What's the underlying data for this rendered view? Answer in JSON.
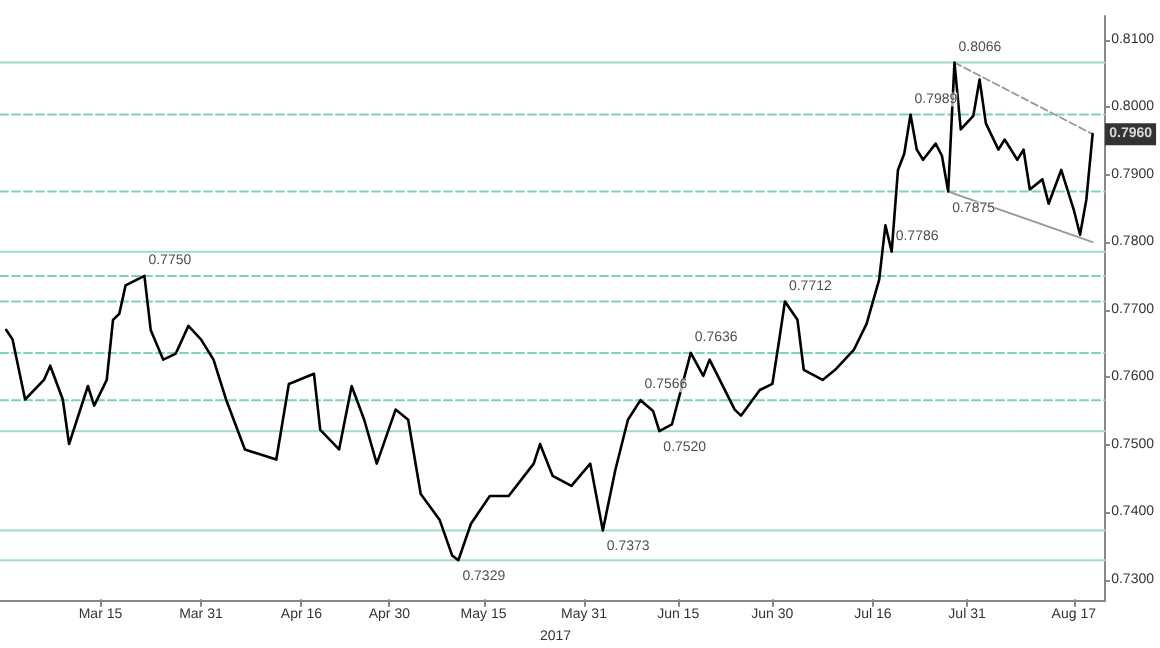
{
  "chart_data": {
    "type": "line",
    "x": [
      "2017-02-28",
      "2017-03-01",
      "2017-03-03",
      "2017-03-06",
      "2017-03-07",
      "2017-03-09",
      "2017-03-10",
      "2017-03-13",
      "2017-03-14",
      "2017-03-16",
      "2017-03-17",
      "2017-03-18",
      "2017-03-19",
      "2017-03-22",
      "2017-03-23",
      "2017-03-25",
      "2017-03-27",
      "2017-03-29",
      "2017-03-31",
      "2017-04-02",
      "2017-04-04",
      "2017-04-07",
      "2017-04-12",
      "2017-04-14",
      "2017-04-18",
      "2017-04-19",
      "2017-04-22",
      "2017-04-24",
      "2017-04-26",
      "2017-04-28",
      "2017-05-01",
      "2017-05-03",
      "2017-05-05",
      "2017-05-08",
      "2017-05-10",
      "2017-05-11",
      "2017-05-13",
      "2017-05-16",
      "2017-05-19",
      "2017-05-23",
      "2017-05-24",
      "2017-05-26",
      "2017-05-29",
      "2017-06-01",
      "2017-06-03",
      "2017-06-05",
      "2017-06-07",
      "2017-06-09",
      "2017-06-11",
      "2017-06-12",
      "2017-06-14",
      "2017-06-17",
      "2017-06-19",
      "2017-06-20",
      "2017-06-24",
      "2017-06-25",
      "2017-06-28",
      "2017-06-30",
      "2017-07-01",
      "2017-07-02",
      "2017-07-04",
      "2017-07-05",
      "2017-07-08",
      "2017-07-10",
      "2017-07-13",
      "2017-07-15",
      "2017-07-17",
      "2017-07-18",
      "2017-07-19",
      "2017-07-20",
      "2017-07-21",
      "2017-07-22",
      "2017-07-23",
      "2017-07-24",
      "2017-07-26",
      "2017-07-27",
      "2017-07-28",
      "2017-07-29",
      "2017-07-30",
      "2017-08-01",
      "2017-08-02",
      "2017-08-03",
      "2017-08-05",
      "2017-08-06",
      "2017-08-08",
      "2017-08-09",
      "2017-08-10",
      "2017-08-12",
      "2017-08-13",
      "2017-08-15",
      "2017-08-17",
      "2017-08-18",
      "2017-08-19",
      "2017-08-20"
    ],
    "series": [
      {
        "color": "#000000",
        "values": [
          0.767,
          0.7656,
          0.7567,
          0.7596,
          0.7617,
          0.7567,
          0.7501,
          0.7587,
          0.7558,
          0.7596,
          0.7685,
          0.7694,
          0.7736,
          0.775,
          0.767,
          0.7626,
          0.7635,
          0.7676,
          0.7656,
          0.7626,
          0.7567,
          0.7493,
          0.7478,
          0.759,
          0.7605,
          0.7522,
          0.7493,
          0.7587,
          0.7537,
          0.7472,
          0.7552,
          0.7537,
          0.7427,
          0.7389,
          0.7336,
          0.7329,
          0.7383,
          0.7424,
          0.7424,
          0.7472,
          0.7501,
          0.7454,
          0.7439,
          0.7472,
          0.7373,
          0.7463,
          0.7537,
          0.7566,
          0.755,
          0.752,
          0.753,
          0.7636,
          0.7602,
          0.7626,
          0.7552,
          0.7543,
          0.7581,
          0.759,
          0.765,
          0.7712,
          0.7685,
          0.7611,
          0.7596,
          0.7611,
          0.7641,
          0.7679,
          0.7744,
          0.7825,
          0.7786,
          0.7907,
          0.7931,
          0.7989,
          0.7937,
          0.7922,
          0.7946,
          0.7928,
          0.7875,
          0.8066,
          0.7967,
          0.7987,
          0.8041,
          0.7976,
          0.7937,
          0.7952,
          0.7922,
          0.7937,
          0.7878,
          0.7893,
          0.7857,
          0.7907,
          0.7848,
          0.7811,
          0.7863,
          0.796
        ]
      },
      {
        "type": "line",
        "color": "#999999",
        "line_style": "dashed",
        "x": [
          "2017-07-29",
          "2017-08-20"
        ],
        "values": [
          0.8066,
          0.796
        ]
      },
      {
        "type": "line",
        "color": "#999999",
        "line_style": "solid",
        "x": [
          "2017-07-28",
          "2017-08-20"
        ],
        "values": [
          0.7875,
          0.78
        ]
      }
    ],
    "xlim": [
      "2017-02-27",
      "2017-08-22"
    ],
    "xticks": [
      {
        "value": "2017-03-15",
        "label": "Mar 15"
      },
      {
        "value": "2017-03-31",
        "label": "Mar 31"
      },
      {
        "value": "2017-04-16",
        "label": "Apr 16"
      },
      {
        "value": "2017-04-30",
        "label": "Apr 30"
      },
      {
        "value": "2017-05-15",
        "label": "May 15"
      },
      {
        "value": "2017-05-31",
        "label": "May 31"
      },
      {
        "value": "2017-06-15",
        "label": "Jun 15"
      },
      {
        "value": "2017-06-30",
        "label": "Jun 30"
      },
      {
        "value": "2017-07-16",
        "label": "Jul 16"
      },
      {
        "value": "2017-07-31",
        "label": "Jul 31"
      },
      {
        "value": "2017-08-17",
        "label": "Aug 17"
      }
    ],
    "ylim": [
      0.727,
      0.8135
    ],
    "yticks": [
      {
        "value": 0.73,
        "label": "0.7300"
      },
      {
        "value": 0.74,
        "label": "0.7400"
      },
      {
        "value": 0.75,
        "label": "0.7500"
      },
      {
        "value": 0.76,
        "label": "0.7600"
      },
      {
        "value": 0.77,
        "label": "0.7700"
      },
      {
        "value": 0.78,
        "label": "0.7800"
      },
      {
        "value": 0.79,
        "label": "0.7900"
      },
      {
        "value": 0.8,
        "label": "0.8000"
      },
      {
        "value": 0.81,
        "label": "0.8100"
      }
    ],
    "grid": false,
    "marker": "none",
    "line_style": "solid",
    "ref_lines": [
      {
        "axis": "y",
        "value": 0.8066,
        "color": "#9fdcc8",
        "line_style": "solid"
      },
      {
        "axis": "y",
        "value": 0.7989,
        "color": "#7fd1b9",
        "line_style": "dashed"
      },
      {
        "axis": "y",
        "value": 0.7875,
        "color": "#7fd1b9",
        "line_style": "dashed"
      },
      {
        "axis": "y",
        "value": 0.7786,
        "color": "#9fdcc8",
        "line_style": "solid"
      },
      {
        "axis": "y",
        "value": 0.775,
        "color": "#7fd1b9",
        "line_style": "dashed"
      },
      {
        "axis": "y",
        "value": 0.7712,
        "color": "#7fd1b9",
        "line_style": "dashed"
      },
      {
        "axis": "y",
        "value": 0.7636,
        "color": "#7fd1b9",
        "line_style": "dashed"
      },
      {
        "axis": "y",
        "value": 0.7566,
        "color": "#7fd1b9",
        "line_style": "dashed"
      },
      {
        "axis": "y",
        "value": 0.752,
        "color": "#9fdcc8",
        "line_style": "solid"
      },
      {
        "axis": "y",
        "value": 0.7373,
        "color": "#9fdcc8",
        "line_style": "solid"
      },
      {
        "axis": "y",
        "value": 0.7329,
        "color": "#9fdcc8",
        "line_style": "solid"
      }
    ],
    "annotations": [
      {
        "text": "0.8066",
        "x": "2017-07-29",
        "y": 0.8066
      },
      {
        "text": "0.7989",
        "x": "2017-07-22",
        "y": 0.7989
      },
      {
        "text": "0.7875",
        "x": "2017-07-28",
        "y": 0.7875
      },
      {
        "text": "0.7786",
        "x": "2017-07-19",
        "y": 0.7786
      },
      {
        "text": "0.7750",
        "x": "2017-03-22",
        "y": 0.775
      },
      {
        "text": "0.7712",
        "x": "2017-07-02",
        "y": 0.7712
      },
      {
        "text": "0.7636",
        "x": "2017-06-17",
        "y": 0.7636
      },
      {
        "text": "0.7566",
        "x": "2017-06-09",
        "y": 0.7566
      },
      {
        "text": "0.7520",
        "x": "2017-06-12",
        "y": 0.752
      },
      {
        "text": "0.7373",
        "x": "2017-06-03",
        "y": 0.7373
      },
      {
        "text": "0.7329",
        "x": "2017-05-11",
        "y": 0.7329
      },
      {
        "text": "0.7960",
        "x": "2017-08-20",
        "y": 0.796
      },
      "2017"
    ]
  }
}
